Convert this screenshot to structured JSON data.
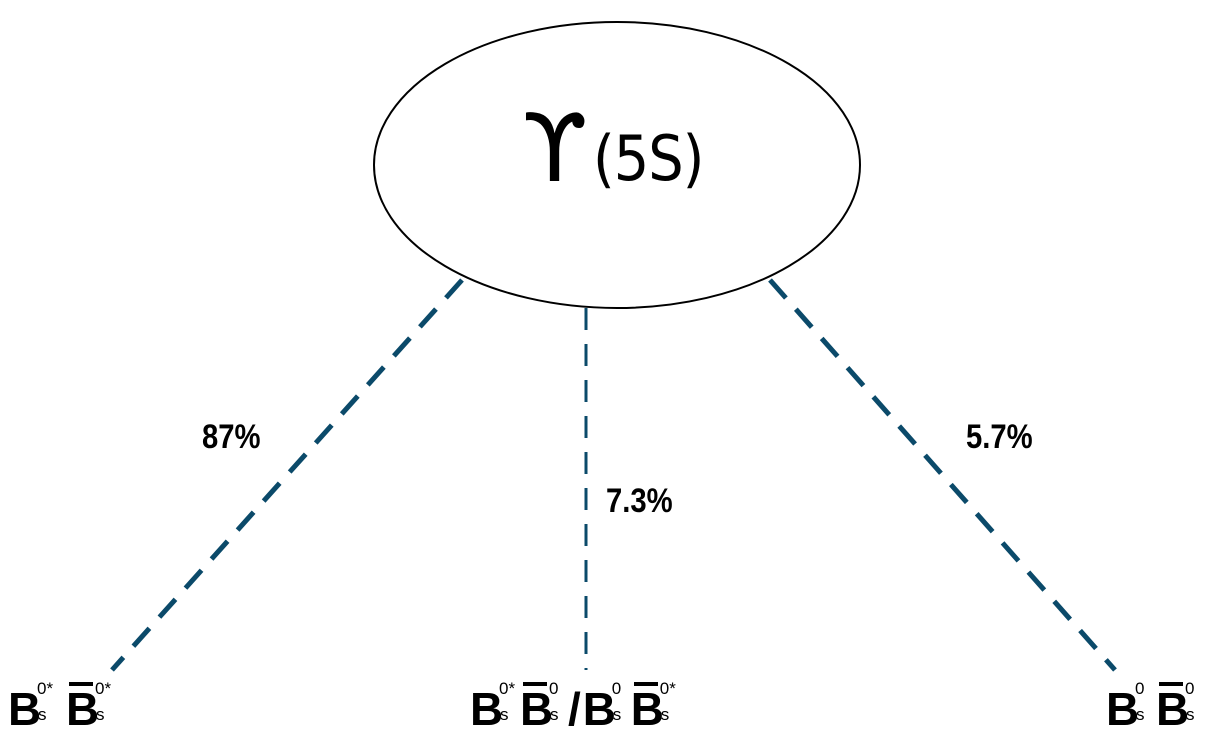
{
  "parent": {
    "symbol": "ϒ",
    "state": "(5S)"
  },
  "branches": [
    {
      "id": "left",
      "fraction": "87%",
      "products": [
        {
          "symbol": "B",
          "bar": false,
          "sup": "0*",
          "sub": "s"
        },
        {
          "symbol": "B",
          "bar": true,
          "sup": "0*",
          "sub": "s"
        }
      ]
    },
    {
      "id": "middle",
      "fraction": "7.3%",
      "separator": "/",
      "products": [
        {
          "symbol": "B",
          "bar": false,
          "sup": "0*",
          "sub": "s"
        },
        {
          "symbol": "B",
          "bar": true,
          "sup": "0",
          "sub": "s"
        },
        {
          "symbol": "B",
          "bar": false,
          "sup": "0",
          "sub": "s"
        },
        {
          "symbol": "B",
          "bar": true,
          "sup": "0*",
          "sub": "s"
        }
      ]
    },
    {
      "id": "right",
      "fraction": "5.7%",
      "products": [
        {
          "symbol": "B",
          "bar": false,
          "sup": "0",
          "sub": "s"
        },
        {
          "symbol": "B",
          "bar": true,
          "sup": "0",
          "sub": "s"
        }
      ]
    }
  ],
  "colors": {
    "line": "#0b4a6a",
    "text": "#000000",
    "ellipse_stroke": "#000000"
  }
}
